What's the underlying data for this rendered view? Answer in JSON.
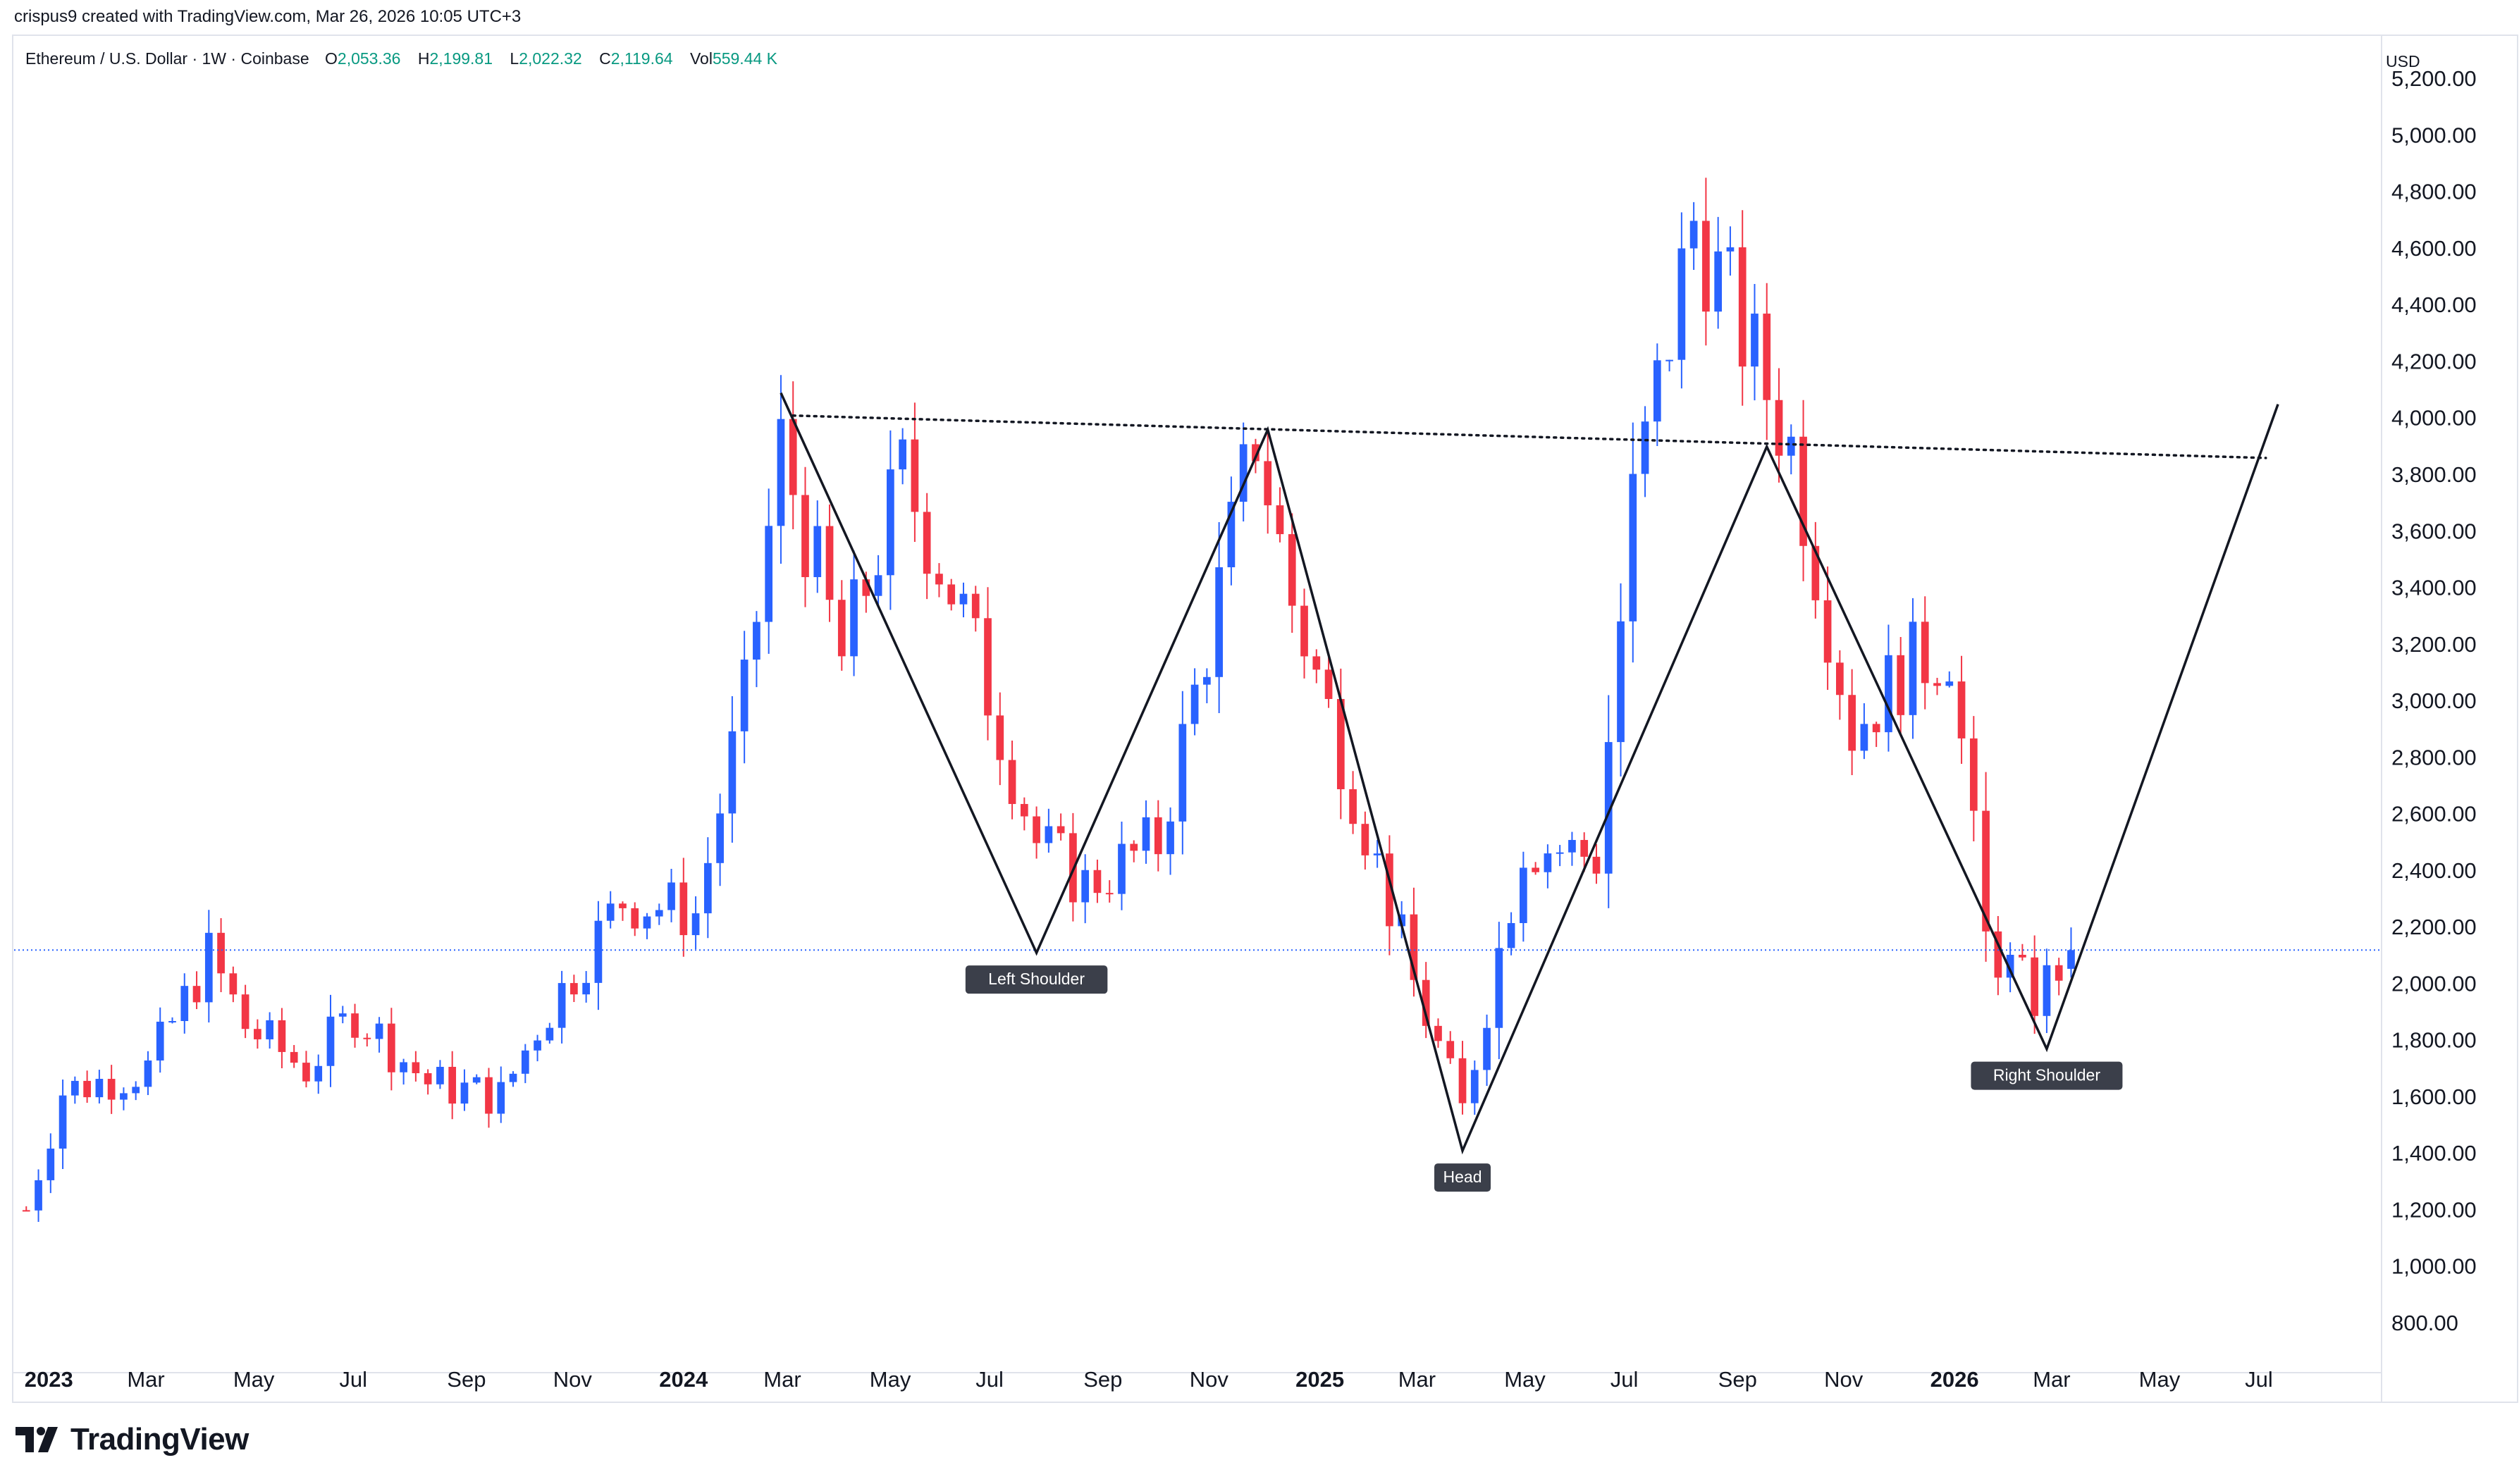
{
  "header": {
    "attribution": "crispus9 created with TradingView.com, Mar 26, 2026 10:05 UTC+3"
  },
  "legend": {
    "symbol": "Ethereum / U.S. Dollar · 1W · Coinbase",
    "open_label": "O",
    "open": "2,053.36",
    "high_label": "H",
    "high": "2,199.81",
    "low_label": "L",
    "low": "2,022.32",
    "close_label": "C",
    "close": "2,119.64",
    "vol_label": "Vol",
    "vol": "559.44 K"
  },
  "footer": {
    "brand": "TradingView"
  },
  "colors": {
    "up": "#2962ff",
    "down": "#f23645",
    "line": "#131722",
    "dotted": "#131722",
    "price_line": "#2962ff"
  },
  "chart_data": {
    "type": "candlestick",
    "title": "Ethereum / U.S. Dollar · 1W · Coinbase",
    "ylabel": "USD",
    "ylim": [
      700,
      5350
    ],
    "y_ticks": [
      800,
      1000,
      1200,
      1400,
      1600,
      1800,
      2000,
      2200,
      2400,
      2600,
      2800,
      3000,
      3200,
      3400,
      3600,
      3800,
      4000,
      4200,
      4400,
      4600,
      4800,
      5000,
      5200
    ],
    "y_tick_labels": [
      "800.00",
      "1,000.00",
      "1,200.00",
      "1,400.00",
      "1,600.00",
      "1,800.00",
      "2,000.00",
      "2,200.00",
      "2,400.00",
      "2,600.00",
      "2,800.00",
      "3,000.00",
      "3,200.00",
      "3,400.00",
      "3,600.00",
      "3,800.00",
      "4,000.00",
      "4,200.00",
      "4,400.00",
      "4,600.00",
      "4,800.00",
      "5,000.00",
      "5,200.00"
    ],
    "x_axis": [
      {
        "label": "2023",
        "date": "2023-01-01",
        "bold": true
      },
      {
        "label": "Mar",
        "date": "2023-03-01",
        "bold": false
      },
      {
        "label": "May",
        "date": "2023-05-01",
        "bold": false
      },
      {
        "label": "Jul",
        "date": "2023-07-01",
        "bold": false
      },
      {
        "label": "Sep",
        "date": "2023-09-01",
        "bold": false
      },
      {
        "label": "Nov",
        "date": "2023-11-01",
        "bold": false
      },
      {
        "label": "2024",
        "date": "2024-01-01",
        "bold": true
      },
      {
        "label": "Mar",
        "date": "2024-03-01",
        "bold": false
      },
      {
        "label": "May",
        "date": "2024-05-01",
        "bold": false
      },
      {
        "label": "Jul",
        "date": "2024-07-01",
        "bold": false
      },
      {
        "label": "Sep",
        "date": "2024-09-01",
        "bold": false
      },
      {
        "label": "Nov",
        "date": "2024-11-01",
        "bold": false
      },
      {
        "label": "2025",
        "date": "2025-01-01",
        "bold": true
      },
      {
        "label": "Mar",
        "date": "2025-03-01",
        "bold": false
      },
      {
        "label": "May",
        "date": "2025-05-01",
        "bold": false
      },
      {
        "label": "Jul",
        "date": "2025-07-01",
        "bold": false
      },
      {
        "label": "Sep",
        "date": "2025-09-01",
        "bold": false
      },
      {
        "label": "Nov",
        "date": "2025-11-01",
        "bold": false
      },
      {
        "label": "2026",
        "date": "2026-01-01",
        "bold": true
      },
      {
        "label": "Mar",
        "date": "2026-03-01",
        "bold": false
      },
      {
        "label": "May",
        "date": "2026-05-01",
        "bold": false
      },
      {
        "label": "Jul",
        "date": "2026-07-01",
        "bold": false
      }
    ],
    "x_range": [
      "2022-12-26",
      "2026-09-20"
    ],
    "current_price": 2119.64,
    "price_label_tag": "USD",
    "trend_waypoints": [
      {
        "date": "2023-01-02",
        "price": 1200
      },
      {
        "date": "2023-01-23",
        "price": 1620
      },
      {
        "date": "2023-03-13",
        "price": 1700
      },
      {
        "date": "2023-04-17",
        "price": 2100
      },
      {
        "date": "2023-05-08",
        "price": 1850
      },
      {
        "date": "2023-06-12",
        "price": 1700
      },
      {
        "date": "2023-07-10",
        "price": 1900
      },
      {
        "date": "2023-08-21",
        "price": 1650
      },
      {
        "date": "2023-10-02",
        "price": 1600
      },
      {
        "date": "2023-10-23",
        "price": 1850
      },
      {
        "date": "2023-12-11",
        "price": 2300
      },
      {
        "date": "2024-01-22",
        "price": 2250
      },
      {
        "date": "2024-02-19",
        "price": 3000
      },
      {
        "date": "2024-03-11",
        "price": 3900
      },
      {
        "date": "2024-04-15",
        "price": 3150
      },
      {
        "date": "2024-05-20",
        "price": 3800
      },
      {
        "date": "2024-06-24",
        "price": 3300
      },
      {
        "date": "2024-08-05",
        "price": 2500
      },
      {
        "date": "2024-09-02",
        "price": 2350
      },
      {
        "date": "2024-10-14",
        "price": 2500
      },
      {
        "date": "2024-11-11",
        "price": 3200
      },
      {
        "date": "2024-12-09",
        "price": 3950
      },
      {
        "date": "2024-12-30",
        "price": 3350
      },
      {
        "date": "2025-02-03",
        "price": 2700
      },
      {
        "date": "2025-03-10",
        "price": 2000
      },
      {
        "date": "2025-04-07",
        "price": 1550
      },
      {
        "date": "2025-05-12",
        "price": 2500
      },
      {
        "date": "2025-06-23",
        "price": 2450
      },
      {
        "date": "2025-07-14",
        "price": 3700
      },
      {
        "date": "2025-08-18",
        "price": 4700
      },
      {
        "date": "2025-09-22",
        "price": 4200
      },
      {
        "date": "2025-10-13",
        "price": 3900
      },
      {
        "date": "2025-11-17",
        "price": 2900
      },
      {
        "date": "2025-12-15",
        "price": 3100
      },
      {
        "date": "2026-01-12",
        "price": 3200
      },
      {
        "date": "2026-02-02",
        "price": 2150
      },
      {
        "date": "2026-03-02",
        "price": 1950
      },
      {
        "date": "2026-03-23",
        "price": 2119.64
      }
    ],
    "last_week": {
      "date": "2026-03-23",
      "open": 2053.36,
      "high": 2199.81,
      "low": 2022.32,
      "close": 2119.64
    },
    "annotations": {
      "dotted_neckline": [
        {
          "date": "2024-03-18",
          "price": 4010
        },
        {
          "date": "2026-07-13",
          "price": 3860
        }
      ],
      "pattern_path": [
        {
          "date": "2024-03-11",
          "price": 4090
        },
        {
          "date": "2024-08-05",
          "price": 2110
        },
        {
          "date": "2024-12-16",
          "price": 3960
        },
        {
          "date": "2025-04-07",
          "price": 1410
        },
        {
          "date": "2025-09-29",
          "price": 3900
        },
        {
          "date": "2026-03-09",
          "price": 1770
        },
        {
          "date": "2026-07-20",
          "price": 4050
        }
      ],
      "labels": [
        {
          "text": "Left Shoulder",
          "date": "2024-08-05",
          "price": 2110
        },
        {
          "text": "Head",
          "date": "2025-04-07",
          "price": 1410
        },
        {
          "text": "Right Shoulder",
          "date": "2026-03-09",
          "price": 1770
        }
      ]
    }
  }
}
